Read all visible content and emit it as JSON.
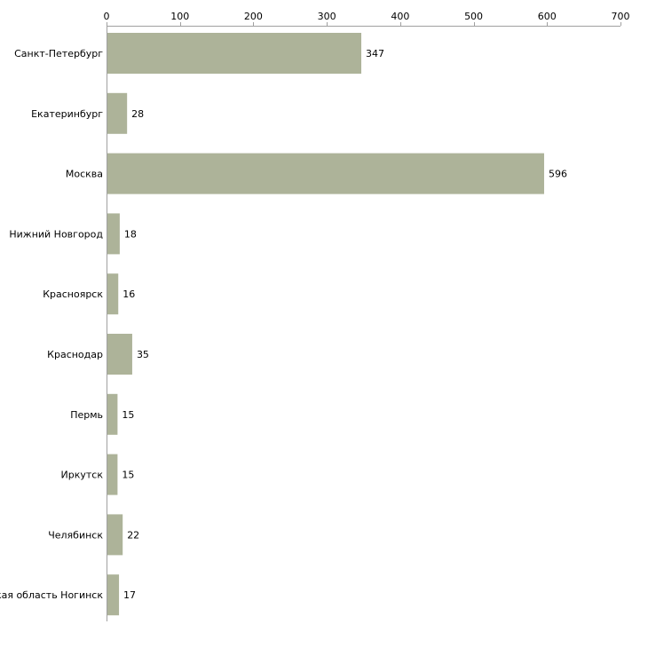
{
  "chart_data": {
    "type": "bar",
    "orientation": "horizontal",
    "title": "",
    "xlabel": "",
    "ylabel": "",
    "xlim": [
      0,
      700
    ],
    "x_ticks": [
      0,
      100,
      200,
      300,
      400,
      500,
      600,
      700
    ],
    "x_axis_position": "top",
    "grid": false,
    "legend": "none",
    "bar_color": "#adb399",
    "axis_color": "#a0a0a0",
    "categories": [
      "Санкт-Петербург",
      "Екатеринбург",
      "Москва",
      "Нижний Новгород",
      "Красноярск",
      "Краснодар",
      "Пермь",
      "Иркутск",
      "Челябинск",
      "Московская область Ногинск"
    ],
    "values": [
      347,
      28,
      596,
      18,
      16,
      35,
      15,
      15,
      22,
      17
    ],
    "data_labels": [
      "347",
      "28",
      "596",
      "18",
      "16",
      "35",
      "15",
      "15",
      "22",
      "17"
    ]
  }
}
